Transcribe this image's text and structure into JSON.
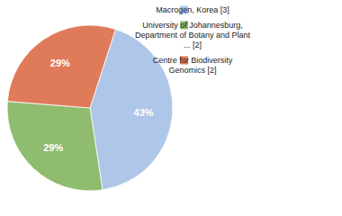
{
  "chart_data": {
    "type": "pie",
    "categories": [
      "Macrogen, Korea [3]",
      "University of Johannesburg,\nDepartment of Botany and Plant\n... [2]",
      "Centre for Biodiversity\nGenomics [2]"
    ],
    "values": [
      43,
      29,
      29
    ],
    "value_labels": [
      "43%",
      "29%",
      "29%"
    ],
    "colors": [
      "#aec6e8",
      "#8fbc6f",
      "#e07b5a"
    ],
    "data_labels": true,
    "legend": "right"
  }
}
